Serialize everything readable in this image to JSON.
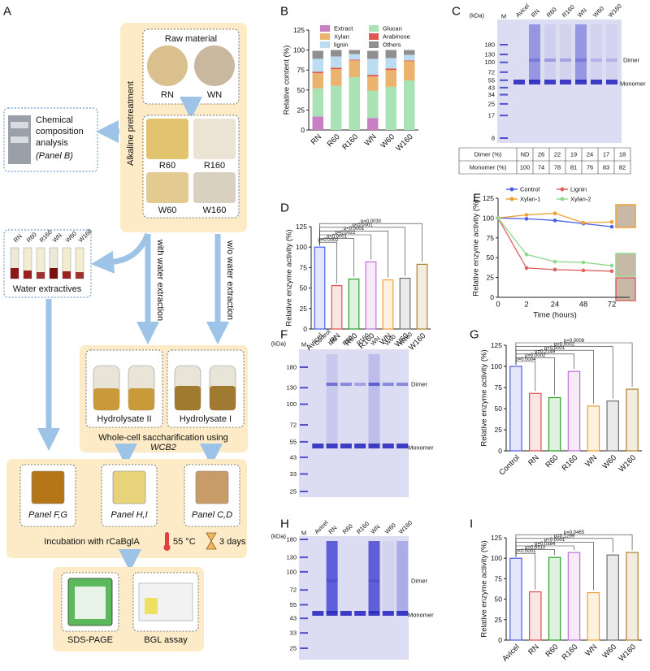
{
  "panel_letters": [
    "A",
    "B",
    "C",
    "D",
    "E",
    "F",
    "G",
    "H",
    "I"
  ],
  "panel_a": {
    "raw_material": {
      "title": "Raw material",
      "samples": [
        "RN",
        "WN"
      ]
    },
    "pretreatment": {
      "title": "Alkaline pretreatment",
      "samples": [
        "R60",
        "R160",
        "W60",
        "W160"
      ]
    },
    "composition": {
      "lines": [
        "Chemical",
        "composition",
        "analysis"
      ],
      "panel": "(Panel B)"
    },
    "extraction_paths": [
      "with water extraction",
      "w/o water extraction"
    ],
    "water_extractives": {
      "title": "Water extractives",
      "tubes": [
        "RN",
        "R60",
        "R160",
        "WN",
        "W60",
        "W160"
      ]
    },
    "hydrolysates": [
      "Hydrolysate II",
      "Hydrolysate I"
    ],
    "saccharification": {
      "text": "Whole-cell saccharification using",
      "strain": "WCB2"
    },
    "incubation": {
      "panels": [
        "Panel F,G",
        "Panel H,I",
        "Panel C,D"
      ],
      "text": "Incubation with rCaBglA",
      "temperature": "55 °C",
      "duration": "3 days"
    },
    "assays": [
      "SDS-PAGE",
      "BGL assay"
    ]
  },
  "gels": [
    {
      "kda_label": "(kDa)",
      "lanes": [
        "M",
        "Avicel",
        "RN",
        "R60",
        "R160",
        "WN",
        "W60",
        "W160"
      ],
      "markers": [
        180,
        130,
        100,
        72,
        55,
        43,
        34,
        25,
        17,
        8
      ],
      "dimer_label": "Dimer",
      "monomer_label": "Monomer"
    },
    {
      "kda_label": "(kDa)",
      "lanes": [
        "M",
        "Control",
        "RN",
        "R60",
        "R160",
        "WN",
        "W60",
        "W160"
      ],
      "markers": [
        180,
        130,
        100,
        72,
        55,
        43,
        33,
        25
      ],
      "dimer_label": "Dimer",
      "monomer_label": "Monomer"
    },
    {
      "kda_label": "(kDa)",
      "lanes": [
        "M",
        "Avicel",
        "RN",
        "R60",
        "R160",
        "WN",
        "W60",
        "W160"
      ],
      "markers": [
        180,
        130,
        100,
        72,
        55,
        43,
        33,
        25
      ],
      "dimer_label": "Dimer",
      "monomer_label": "Monomer"
    }
  ],
  "gel_table": {
    "rows": [
      [
        "Dimer (%)",
        "ND",
        26,
        22,
        19,
        24,
        17,
        18
      ],
      [
        "Monomer (%)",
        100,
        74,
        78,
        81,
        76,
        83,
        82
      ]
    ]
  },
  "chart_data": [
    {
      "type": "bar",
      "stacked": true,
      "ylabel": "Relative content (%)",
      "categories": [
        "RN",
        "R60",
        "R160",
        "WN",
        "W60",
        "W160"
      ],
      "series": [
        {
          "name": "Extract",
          "color": "#c97fc4",
          "values": [
            17,
            0,
            0,
            15,
            0,
            0
          ]
        },
        {
          "name": "Glucan",
          "color": "#a9e2b4",
          "values": [
            35,
            55,
            66,
            34,
            54,
            62
          ]
        },
        {
          "name": "Xylan",
          "color": "#eab46e",
          "values": [
            19,
            21,
            21,
            18,
            21,
            24
          ]
        },
        {
          "name": "Arabinose",
          "color": "#e0584f",
          "values": [
            2,
            2,
            1,
            2,
            2,
            1
          ]
        },
        {
          "name": "lignin",
          "color": "#bcdcf2",
          "values": [
            16,
            14,
            7,
            20,
            13,
            7
          ]
        },
        {
          "name": "Others",
          "color": "#8f8f8f",
          "values": [
            10,
            8,
            5,
            10,
            10,
            6
          ]
        }
      ],
      "ylim": [
        0,
        125
      ],
      "yticks": [
        0,
        25,
        50,
        75,
        100,
        125
      ]
    },
    {
      "type": "bar",
      "ylabel": "Relative enzyme activity (%)",
      "categories": [
        "Avicel",
        "RN",
        "R60",
        "R160",
        "WN",
        "W60",
        "W160"
      ],
      "values": [
        100,
        53,
        61,
        82,
        60,
        62,
        79
      ],
      "colors": [
        "#4a5ee8",
        "#e05050",
        "#2aa02a",
        "#c070d8",
        "#f0a030",
        "#707070",
        "#b08030"
      ],
      "p_values": [
        null,
        "p=0.0002",
        "p<0.0001",
        "p=0.0022",
        "p<0.0001",
        "p<0.0001",
        "p=0.0030"
      ],
      "ylim": [
        0,
        125
      ],
      "yticks": [
        0,
        25,
        50,
        75,
        100,
        125
      ]
    },
    {
      "type": "line",
      "ylabel": "Relative enzyme activity (%)",
      "xlabel": "Time (hours)",
      "categories": [
        "0",
        "2",
        "24",
        "48",
        "72"
      ],
      "series": [
        {
          "name": "Control",
          "color": "#4a5ee8",
          "values": [
            100,
            99,
            97,
            93,
            89
          ]
        },
        {
          "name": "Lignin",
          "color": "#e06060",
          "values": [
            100,
            37,
            35,
            34,
            33
          ]
        },
        {
          "name": "Xylan-1",
          "color": "#f0a030",
          "values": [
            100,
            104,
            106,
            94,
            95
          ]
        },
        {
          "name": "Xylan-2",
          "color": "#8fd88f",
          "values": [
            100,
            54,
            45,
            44,
            40
          ]
        }
      ],
      "ylim": [
        0,
        125
      ],
      "yticks": [
        0,
        25,
        50,
        75,
        100,
        125
      ]
    },
    {
      "type": "bar",
      "ylabel": "Relative enzyme activity (%)",
      "categories": [
        "Control",
        "RN",
        "R60",
        "R160",
        "WN",
        "W60",
        "W160"
      ],
      "values": [
        100,
        68,
        63,
        94,
        53,
        59,
        73
      ],
      "colors": [
        "#4a5ee8",
        "#e05050",
        "#2aa02a",
        "#c070d8",
        "#f0a030",
        "#707070",
        "#b08030"
      ],
      "p_values": [
        null,
        "p=0.0004",
        "p=0.0002",
        "p=0.2149",
        "p<0.0001",
        "p=0.0002",
        "p=0.0008"
      ],
      "ylim": [
        0,
        125
      ],
      "yticks": [
        0,
        25,
        50,
        75,
        100,
        125
      ]
    },
    {
      "type": "bar",
      "ylabel": "Relative enzyme activity (%)",
      "categories": [
        "Avicel",
        "RN",
        "R60",
        "R160",
        "WN",
        "W60",
        "W160"
      ],
      "values": [
        100,
        59,
        101,
        107,
        58,
        104,
        107
      ],
      "colors": [
        "#4a5ee8",
        "#e05050",
        "#2aa02a",
        "#c070d8",
        "#f0a030",
        "#707070",
        "#b08030"
      ],
      "p_values": [
        null,
        "p<0.0001",
        "p=0.6510",
        "p=0.0384",
        "p<0.0001",
        "p=0.1299",
        "p=0.0465"
      ],
      "ylim": [
        0,
        125
      ],
      "yticks": [
        0,
        25,
        50,
        75,
        100,
        125
      ]
    }
  ]
}
